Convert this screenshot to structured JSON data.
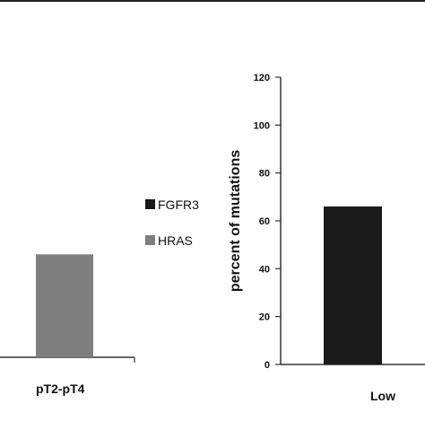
{
  "chart_data": [
    {
      "type": "bar",
      "categories": [
        "pT2-pT4"
      ],
      "series": [
        {
          "name": "HRAS",
          "values": [
            43
          ]
        }
      ],
      "title": "",
      "xlabel": "",
      "ylabel": "",
      "grid": false
    },
    {
      "type": "bar",
      "categories": [
        "Low"
      ],
      "series": [
        {
          "name": "FGFR3",
          "values": [
            66
          ]
        }
      ],
      "title": "",
      "xlabel": "",
      "ylabel": "percent of mutations",
      "ylim": [
        0,
        120
      ],
      "yticks": [
        "0",
        "20",
        "40",
        "60",
        "80",
        "100",
        "120"
      ],
      "grid": false
    }
  ],
  "legend": {
    "items": [
      {
        "label": "FGFR3",
        "color": "#1a1a1a"
      },
      {
        "label": "HRAS",
        "color": "#7f7f7f"
      }
    ]
  },
  "colors": {
    "fgfr3": "#1a1a1a",
    "hras": "#7f7f7f",
    "axis": "#333333"
  }
}
